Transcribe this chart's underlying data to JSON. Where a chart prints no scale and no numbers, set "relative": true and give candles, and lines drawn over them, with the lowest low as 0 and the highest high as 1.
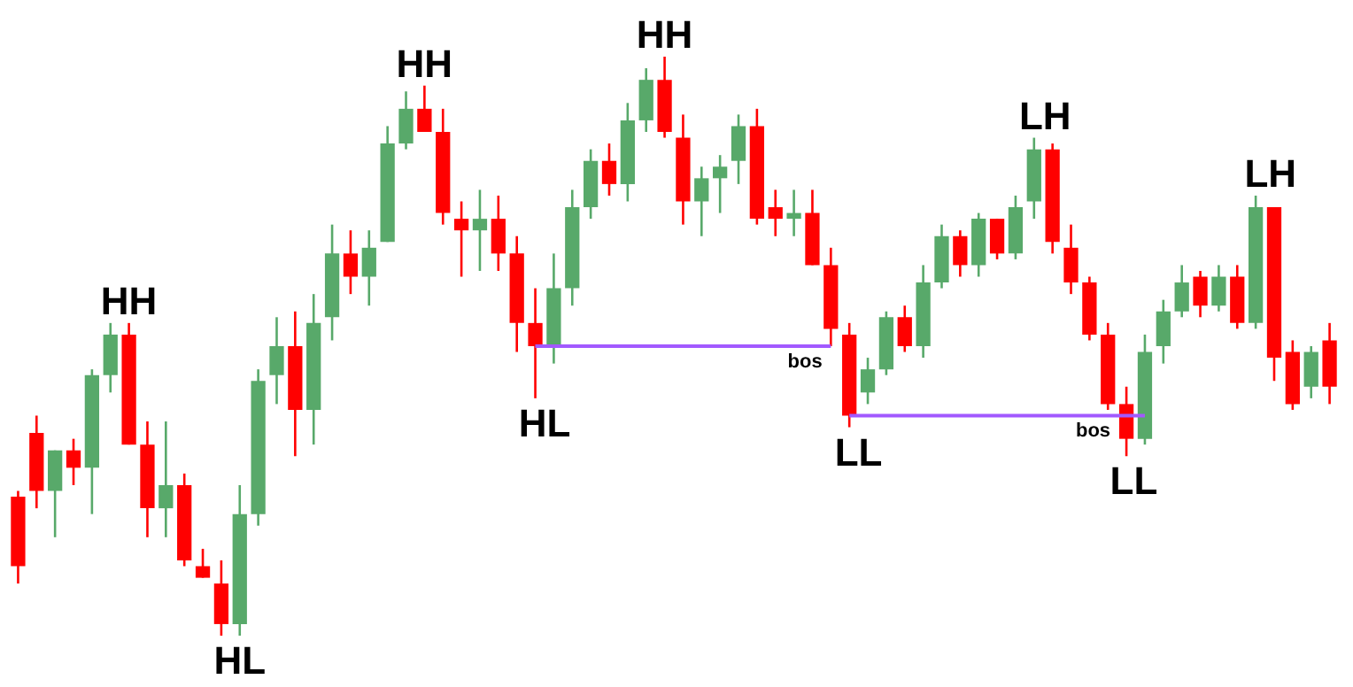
{
  "chart_data": {
    "type": "candlestick",
    "relative": true,
    "categories": [
      null,
      null,
      null,
      null,
      null,
      null,
      null,
      null,
      null,
      null,
      null,
      null,
      null,
      null,
      null,
      null,
      null,
      null,
      null,
      null,
      null,
      null,
      null,
      null,
      null,
      null,
      null,
      null,
      null,
      null,
      null,
      null,
      null,
      null,
      null,
      null,
      null,
      null,
      null,
      null,
      null,
      null,
      null,
      null,
      null,
      null,
      null,
      null,
      null,
      null,
      null,
      null,
      null,
      null,
      null,
      null,
      null,
      null,
      null,
      null,
      null,
      null,
      null,
      null,
      null,
      null,
      null,
      null,
      null,
      null,
      null,
      null
    ],
    "ohlc": [
      [
        0.24,
        0.25,
        0.09,
        0.12
      ],
      [
        0.35,
        0.38,
        0.22,
        0.25
      ],
      [
        0.25,
        0.32,
        0.17,
        0.32
      ],
      [
        0.32,
        0.34,
        0.26,
        0.29
      ],
      [
        0.29,
        0.46,
        0.21,
        0.45
      ],
      [
        0.45,
        0.54,
        0.42,
        0.52
      ],
      [
        0.52,
        0.54,
        0.33,
        0.33
      ],
      [
        0.33,
        0.37,
        0.17,
        0.22
      ],
      [
        0.22,
        0.37,
        0.17,
        0.26
      ],
      [
        0.26,
        0.28,
        0.12,
        0.13
      ],
      [
        0.12,
        0.15,
        0.1,
        0.1
      ],
      [
        0.09,
        0.13,
        0,
        0.02
      ],
      [
        0.02,
        0.26,
        0,
        0.21
      ],
      [
        0.21,
        0.46,
        0.19,
        0.44
      ],
      [
        0.45,
        0.55,
        0.4,
        0.5
      ],
      [
        0.5,
        0.56,
        0.31,
        0.39
      ],
      [
        0.39,
        0.59,
        0.33,
        0.54
      ],
      [
        0.55,
        0.71,
        0.51,
        0.66
      ],
      [
        0.66,
        0.7,
        0.59,
        0.62
      ],
      [
        0.62,
        0.7,
        0.57,
        0.67
      ],
      [
        0.68,
        0.88,
        0.68,
        0.85
      ],
      [
        0.85,
        0.94,
        0.84,
        0.91
      ],
      [
        0.91,
        0.95,
        0.87,
        0.87
      ],
      [
        0.87,
        0.91,
        0.71,
        0.73
      ],
      [
        0.72,
        0.75,
        0.62,
        0.7
      ],
      [
        0.7,
        0.77,
        0.63,
        0.72
      ],
      [
        0.72,
        0.76,
        0.63,
        0.66
      ],
      [
        0.66,
        0.69,
        0.49,
        0.54
      ],
      [
        0.54,
        0.6,
        0.41,
        0.5
      ],
      [
        0.5,
        0.66,
        0.47,
        0.6
      ],
      [
        0.6,
        0.77,
        0.57,
        0.74
      ],
      [
        0.74,
        0.84,
        0.72,
        0.82
      ],
      [
        0.82,
        0.85,
        0.76,
        0.78
      ],
      [
        0.78,
        0.92,
        0.75,
        0.89
      ],
      [
        0.89,
        0.98,
        0.87,
        0.96
      ],
      [
        0.96,
        1,
        0.86,
        0.87
      ],
      [
        0.86,
        0.9,
        0.71,
        0.75
      ],
      [
        0.75,
        0.81,
        0.69,
        0.79
      ],
      [
        0.79,
        0.83,
        0.73,
        0.81
      ],
      [
        0.82,
        0.9,
        0.78,
        0.88
      ],
      [
        0.88,
        0.91,
        0.71,
        0.72
      ],
      [
        0.74,
        0.77,
        0.69,
        0.72
      ],
      [
        0.72,
        0.77,
        0.69,
        0.73
      ],
      [
        0.73,
        0.77,
        0.64,
        0.64
      ],
      [
        0.64,
        0.67,
        0.5,
        0.53
      ],
      [
        0.52,
        0.54,
        0.36,
        0.38
      ],
      [
        0.42,
        0.48,
        0.4,
        0.46
      ],
      [
        0.46,
        0.56,
        0.45,
        0.55
      ],
      [
        0.55,
        0.57,
        0.49,
        0.5
      ],
      [
        0.5,
        0.64,
        0.48,
        0.61
      ],
      [
        0.61,
        0.71,
        0.6,
        0.69
      ],
      [
        0.69,
        0.7,
        0.62,
        0.64
      ],
      [
        0.64,
        0.73,
        0.62,
        0.72
      ],
      [
        0.72,
        0.72,
        0.65,
        0.66
      ],
      [
        0.66,
        0.76,
        0.65,
        0.74
      ],
      [
        0.75,
        0.86,
        0.72,
        0.84
      ],
      [
        0.84,
        0.85,
        0.66,
        0.68
      ],
      [
        0.67,
        0.71,
        0.59,
        0.61
      ],
      [
        0.61,
        0.62,
        0.51,
        0.52
      ],
      [
        0.52,
        0.54,
        0.39,
        0.4
      ],
      [
        0.4,
        0.43,
        0.31,
        0.34
      ],
      [
        0.34,
        0.52,
        0.33,
        0.49
      ],
      [
        0.5,
        0.58,
        0.47,
        0.56
      ],
      [
        0.56,
        0.64,
        0.55,
        0.61
      ],
      [
        0.62,
        0.63,
        0.55,
        0.57
      ],
      [
        0.57,
        0.64,
        0.56,
        0.62
      ],
      [
        0.62,
        0.64,
        0.53,
        0.54
      ],
      [
        0.54,
        0.76,
        0.53,
        0.74
      ],
      [
        0.74,
        0.74,
        0.44,
        0.48
      ],
      [
        0.49,
        0.51,
        0.39,
        0.4
      ],
      [
        0.43,
        0.5,
        0.41,
        0.49
      ],
      [
        0.51,
        0.54,
        0.4,
        0.43
      ]
    ],
    "colors": [
      "#ff0000",
      "#ff0000",
      "#58a96a",
      "#ff0000",
      "#58a96a",
      "#58a96a",
      "#ff0000",
      "#ff0000",
      "#58a96a",
      "#ff0000",
      "#ff0000",
      "#ff0000",
      "#58a96a",
      "#58a96a",
      "#58a96a",
      "#ff0000",
      "#58a96a",
      "#58a96a",
      "#ff0000",
      "#58a96a",
      "#58a96a",
      "#58a96a",
      "#ff0000",
      "#ff0000",
      "#ff0000",
      "#58a96a",
      "#ff0000",
      "#ff0000",
      "#ff0000",
      "#58a96a",
      "#58a96a",
      "#58a96a",
      "#ff0000",
      "#58a96a",
      "#58a96a",
      "#ff0000",
      "#ff0000",
      "#58a96a",
      "#58a96a",
      "#58a96a",
      "#ff0000",
      "#ff0000",
      "#58a96a",
      "#ff0000",
      "#ff0000",
      "#ff0000",
      "#58a96a",
      "#58a96a",
      "#ff0000",
      "#58a96a",
      "#58a96a",
      "#ff0000",
      "#58a96a",
      "#ff0000",
      "#58a96a",
      "#58a96a",
      "#ff0000",
      "#ff0000",
      "#ff0000",
      "#ff0000",
      "#ff0000",
      "#58a96a",
      "#58a96a",
      "#58a96a",
      "#ff0000",
      "#58a96a",
      "#ff0000",
      "#58a96a",
      "#ff0000",
      "#ff0000",
      "#58a96a",
      "#ff0000"
    ],
    "annotations": [
      "HH",
      "HL",
      "HH",
      "HL",
      "HH",
      "bos",
      "LL",
      "LH",
      "bos",
      "LL",
      "LH"
    ]
  }
}
